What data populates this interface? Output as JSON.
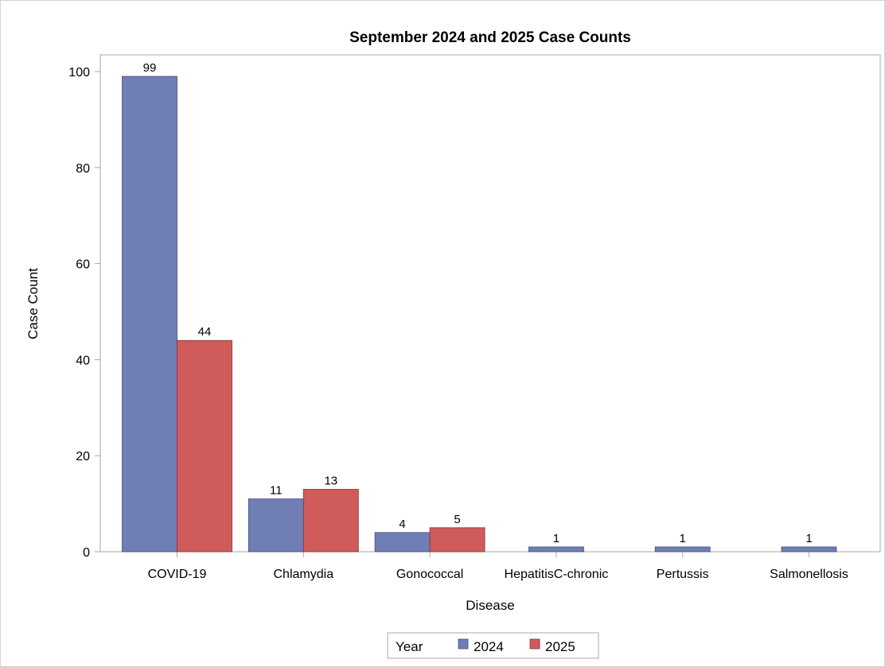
{
  "chart_data": {
    "type": "bar",
    "title": "September 2024 and 2025 Case Counts",
    "xlabel": "Disease",
    "ylabel": "Case Count",
    "ylim": [
      0,
      100
    ],
    "yticks": [
      0,
      20,
      40,
      60,
      80,
      100
    ],
    "categories": [
      "COVID-19",
      "Chlamydia",
      "Gonococcal",
      "HepatitisC-chronic",
      "Pertussis",
      "Salmonellosis"
    ],
    "series": [
      {
        "name": "2024",
        "color": "#6f7fb5",
        "values": [
          99,
          11,
          4,
          1,
          1,
          1
        ]
      },
      {
        "name": "2025",
        "color": "#d05b5b",
        "values": [
          44,
          13,
          5,
          null,
          null,
          null
        ]
      }
    ],
    "legend": {
      "title": "Year",
      "position": "bottom"
    },
    "grid": false,
    "data_labels": true
  }
}
